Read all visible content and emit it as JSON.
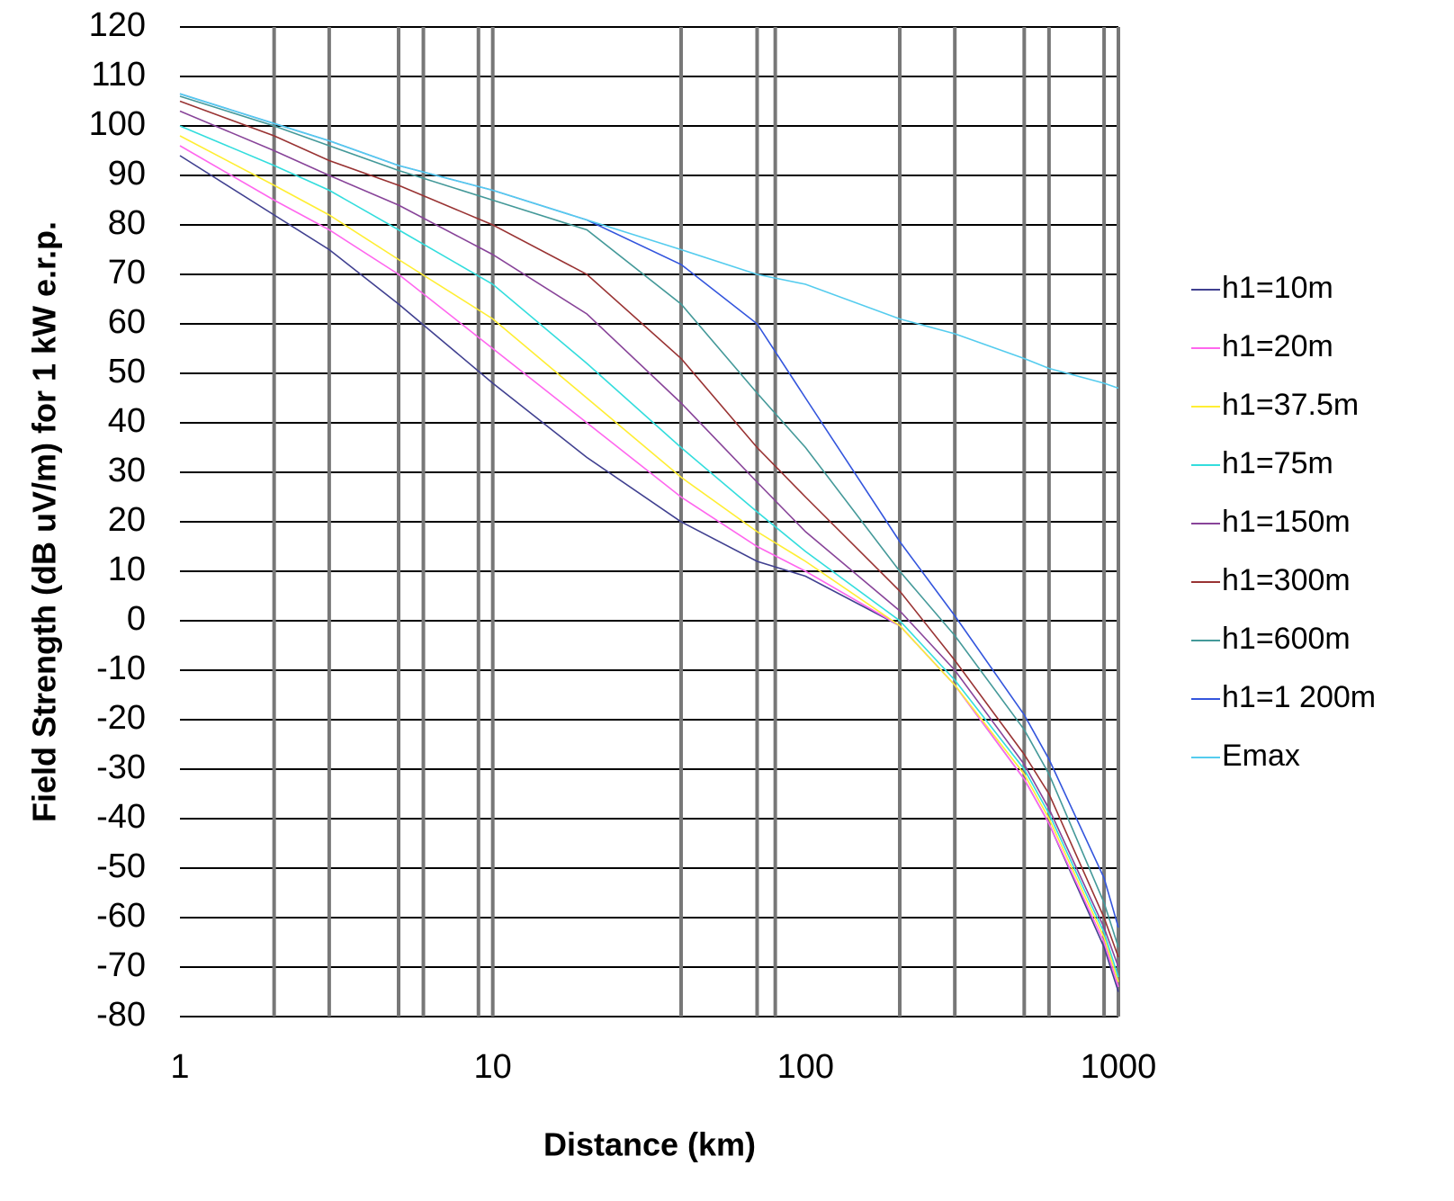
{
  "chart_data": {
    "type": "line",
    "x_label": "Distance (km)",
    "y_label": "Field Strength (dB uV/m) for 1 kW e.r.p.",
    "x": [
      1,
      2,
      3,
      5,
      10,
      20,
      40,
      70,
      100,
      200,
      300,
      500,
      600,
      900,
      1000
    ],
    "series": [
      {
        "name": "h1=10m",
        "color": "#404090",
        "values": [
          94,
          82,
          75,
          64,
          48,
          33,
          20,
          12,
          9,
          -1,
          -13,
          -32,
          -41,
          -66,
          -75
        ]
      },
      {
        "name": "h1=20m",
        "color": "#ff66ee",
        "values": [
          96,
          85,
          79,
          70,
          55,
          40,
          25,
          15,
          10,
          -1,
          -13,
          -32,
          -41,
          -65,
          -74
        ]
      },
      {
        "name": "h1=37.5m",
        "color": "#ffee33",
        "values": [
          98,
          88,
          82,
          73,
          61,
          45,
          29,
          18,
          12,
          -1,
          -13,
          -31,
          -40,
          -64,
          -73
        ]
      },
      {
        "name": "h1=75m",
        "color": "#33dddd",
        "values": [
          100,
          92,
          87,
          79,
          68,
          52,
          35,
          22,
          14,
          0,
          -12,
          -30,
          -39,
          -63,
          -72
        ]
      },
      {
        "name": "h1=150m",
        "color": "#884499",
        "values": [
          103,
          95,
          90,
          84,
          74,
          62,
          44,
          28,
          18,
          2,
          -10,
          -29,
          -38,
          -62,
          -70
        ]
      },
      {
        "name": "h1=300m",
        "color": "#993333",
        "values": [
          105,
          98,
          93,
          88,
          80,
          70,
          53,
          35,
          25,
          6,
          -8,
          -27,
          -35,
          -60,
          -68
        ]
      },
      {
        "name": "h1=600m",
        "color": "#449999",
        "values": [
          106,
          100,
          96,
          91,
          85,
          79,
          64,
          46,
          35,
          10,
          -3,
          -22,
          -31,
          -57,
          -66
        ]
      },
      {
        "name": "h1=1 200m",
        "color": "#3355dd",
        "values": [
          106.5,
          100.5,
          97,
          92,
          87,
          81,
          72,
          60,
          45,
          16,
          1,
          -19,
          -28,
          -52,
          -62
        ]
      },
      {
        "name": "Emax",
        "color": "#55ccee",
        "values": [
          106.5,
          100.5,
          97,
          92,
          87,
          81,
          75,
          70,
          68,
          61,
          58,
          53,
          51,
          48,
          47
        ]
      }
    ],
    "xscale": "log",
    "xlim": [
      1,
      1000
    ],
    "xticks": [
      1,
      10,
      100,
      1000
    ],
    "xgrid": [
      2,
      3,
      5,
      6,
      9,
      10,
      40,
      70,
      80,
      200,
      300,
      500,
      600,
      900,
      1000
    ],
    "ylim": [
      -80,
      120
    ],
    "yticks": [
      -80,
      -70,
      -60,
      -50,
      -40,
      -30,
      -20,
      -10,
      0,
      10,
      20,
      30,
      40,
      50,
      60,
      70,
      80,
      90,
      100,
      110,
      120
    ],
    "grid": true,
    "legend": "right"
  }
}
